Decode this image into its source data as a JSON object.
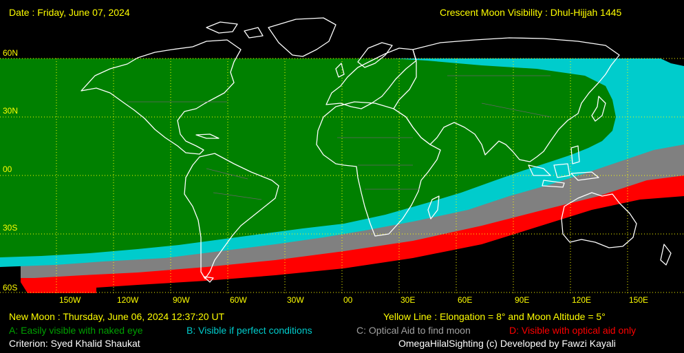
{
  "header": {
    "date": "Date : Friday, June 07, 2024",
    "title": "Crescent Moon Visibility : Dhul-Hijjah  1445"
  },
  "map": {
    "lat_labels": [
      "60N",
      "30N",
      "00",
      "30S",
      "60S"
    ],
    "lon_labels": [
      "150W",
      "120W",
      "90W",
      "60W",
      "30W",
      "00",
      "30E",
      "60E",
      "90E",
      "120E",
      "150E"
    ],
    "colors": {
      "A": "#008000",
      "B": "#00cccc",
      "C": "#808080",
      "D": "#ff0000",
      "grid": "#ffff00",
      "coast": "#ffffff",
      "text_yellow": "#ffff00"
    }
  },
  "footer": {
    "new_moon": "New Moon : Thursday, June 06, 2024  12:37:20  UT",
    "yellow_line": "Yellow Line : Elongation = 8°  and Moon Altitude = 5°",
    "legend": {
      "A": "A: Easily visible with naked eye",
      "B": "B: Visible if perfect conditions",
      "C": "C: Optical Aid to find moon",
      "D": "D: Visible with optical aid only"
    },
    "criterion": "Criterion: Syed Khalid Shaukat",
    "credit": "OmegaHilalSighting  (c)  Developed by Fawzi Kayali"
  }
}
